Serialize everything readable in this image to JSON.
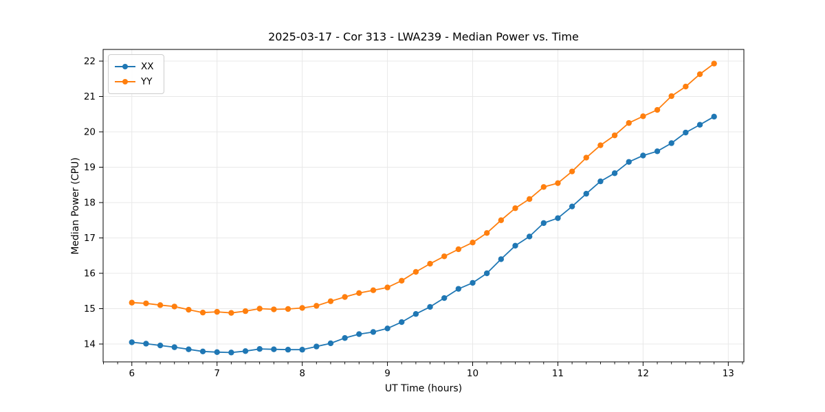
{
  "figure": {
    "title": "2025-03-17 - Cor 313 - LWA239 - Median Power vs. Time"
  },
  "chart_data": {
    "type": "line",
    "title": "2025-03-17 - Cor 313 - LWA239 - Median Power vs. Time",
    "xlabel": "UT Time (hours)",
    "ylabel": "Median Power (CPU)",
    "xlim": [
      5.663,
      13.183
    ],
    "ylim": [
      13.495,
      22.33
    ],
    "x_major_ticks": [
      6,
      7,
      8,
      9,
      10,
      11,
      12,
      13
    ],
    "y_major_ticks": [
      14,
      15,
      16,
      17,
      18,
      19,
      20,
      21,
      22
    ],
    "x_minor_step": 0.166667,
    "grid": true,
    "grid_color": "#e8e8e8",
    "legend_position": "upper left",
    "x": [
      6.0,
      6.1667,
      6.3333,
      6.5,
      6.6667,
      6.8333,
      7.0,
      7.1667,
      7.3333,
      7.5,
      7.6667,
      7.8333,
      8.0,
      8.1667,
      8.3333,
      8.5,
      8.6667,
      8.8333,
      9.0,
      9.1667,
      9.3333,
      9.5,
      9.6667,
      9.8333,
      10.0,
      10.1667,
      10.3333,
      10.5,
      10.6667,
      10.8333,
      11.0,
      11.1667,
      11.3333,
      11.5,
      11.6667,
      11.8333,
      12.0,
      12.1667,
      12.3333,
      12.5,
      12.6667,
      12.8333
    ],
    "series": [
      {
        "name": "XX",
        "color": "#1f77b4",
        "values": [
          14.05,
          14.01,
          13.96,
          13.91,
          13.85,
          13.79,
          13.77,
          13.76,
          13.8,
          13.86,
          13.85,
          13.84,
          13.84,
          13.93,
          14.02,
          14.17,
          14.28,
          14.34,
          14.44,
          14.62,
          14.85,
          15.05,
          15.3,
          15.56,
          15.73,
          16.0,
          16.4,
          16.78,
          17.04,
          17.42,
          17.56,
          17.89,
          18.25,
          18.6,
          18.83,
          19.15,
          19.33,
          19.45,
          19.68,
          19.98,
          20.2,
          20.43
        ]
      },
      {
        "name": "YY",
        "color": "#ff7f0e",
        "values": [
          15.17,
          15.15,
          15.1,
          15.06,
          14.97,
          14.89,
          14.91,
          14.88,
          14.93,
          15.0,
          14.98,
          14.99,
          15.02,
          15.08,
          15.21,
          15.33,
          15.44,
          15.52,
          15.6,
          15.79,
          16.04,
          16.27,
          16.48,
          16.68,
          16.87,
          17.14,
          17.5,
          17.84,
          18.1,
          18.44,
          18.55,
          18.88,
          19.27,
          19.62,
          19.9,
          20.25,
          20.44,
          20.62,
          21.01,
          21.28,
          21.63,
          21.93
        ]
      }
    ]
  }
}
